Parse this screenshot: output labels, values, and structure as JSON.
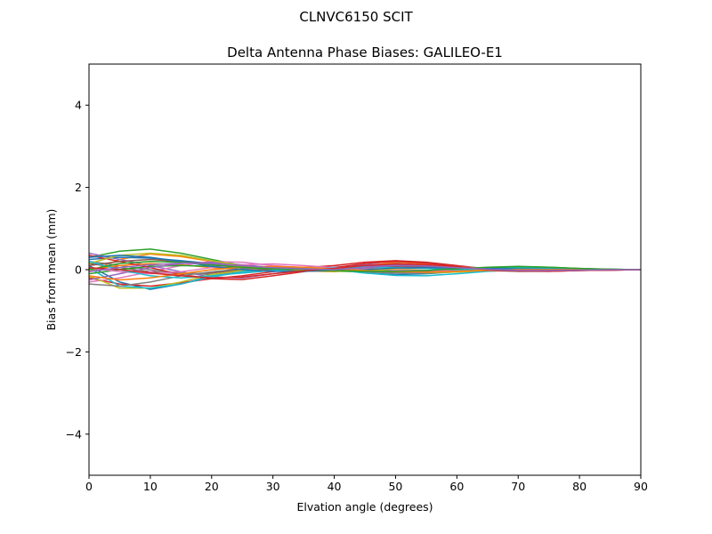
{
  "suptitle": "CLNVC6150        SCIT",
  "chart_data": {
    "type": "line",
    "title": "Delta Antenna Phase Biases: GALILEO-E1",
    "xlabel": "Elvation angle (degrees)",
    "ylabel": "Bias from mean (mm)",
    "xlim": [
      0,
      90
    ],
    "ylim": [
      -5,
      5
    ],
    "xticks": [
      "0",
      "10",
      "20",
      "30",
      "40",
      "50",
      "60",
      "70",
      "80",
      "90"
    ],
    "yticks": [
      "−4",
      "−2",
      "0",
      "2",
      "4"
    ],
    "x": [
      0,
      5,
      10,
      15,
      20,
      25,
      30,
      35,
      40,
      45,
      50,
      55,
      60,
      65,
      70,
      75,
      80,
      85,
      90
    ],
    "series": [
      {
        "color": "#1f77b4",
        "values": [
          0.1,
          -0.3,
          -0.48,
          -0.35,
          -0.15,
          -0.05,
          0.02,
          0.05,
          0.02,
          -0.08,
          -0.12,
          -0.1,
          -0.05,
          0.0,
          0.02,
          0.02,
          0.01,
          0.0,
          0.0
        ]
      },
      {
        "color": "#ff7f0e",
        "values": [
          -0.05,
          0.25,
          0.38,
          0.32,
          0.2,
          0.08,
          0.02,
          -0.03,
          -0.05,
          0.02,
          0.1,
          0.08,
          0.03,
          -0.02,
          -0.03,
          -0.02,
          -0.01,
          0.0,
          0.0
        ]
      },
      {
        "color": "#2ca02c",
        "values": [
          0.3,
          0.45,
          0.5,
          0.4,
          0.25,
          0.1,
          0.03,
          -0.02,
          -0.04,
          -0.05,
          -0.03,
          -0.02,
          0.0,
          0.05,
          0.06,
          0.05,
          0.02,
          0.01,
          0.0
        ]
      },
      {
        "color": "#d62728",
        "values": [
          -0.2,
          -0.35,
          -0.4,
          -0.32,
          -0.22,
          -0.15,
          -0.05,
          0.05,
          0.1,
          0.18,
          0.22,
          0.18,
          0.1,
          0.02,
          -0.03,
          -0.04,
          -0.02,
          -0.01,
          0.0
        ]
      },
      {
        "color": "#9467bd",
        "values": [
          0.4,
          0.25,
          0.1,
          -0.05,
          -0.18,
          -0.2,
          -0.1,
          0.0,
          0.06,
          0.12,
          0.15,
          0.12,
          0.08,
          0.03,
          -0.02,
          -0.03,
          -0.02,
          0.0,
          0.0
        ]
      },
      {
        "color": "#8c564b",
        "values": [
          0.15,
          0.05,
          -0.05,
          -0.1,
          -0.08,
          0.0,
          0.05,
          0.06,
          0.03,
          0.05,
          0.08,
          0.06,
          0.02,
          -0.02,
          -0.03,
          -0.02,
          -0.01,
          0.0,
          0.0
        ]
      },
      {
        "color": "#e377c2",
        "values": [
          -0.3,
          -0.2,
          -0.05,
          0.1,
          0.2,
          0.18,
          0.1,
          0.05,
          0.02,
          0.0,
          -0.02,
          -0.04,
          -0.05,
          -0.04,
          -0.02,
          -0.01,
          0.0,
          0.0,
          0.0
        ]
      },
      {
        "color": "#7f7f7f",
        "values": [
          0.2,
          0.1,
          0.0,
          -0.08,
          -0.12,
          -0.08,
          -0.02,
          0.02,
          0.04,
          0.02,
          -0.04,
          -0.06,
          -0.04,
          0.0,
          0.02,
          0.02,
          0.01,
          0.0,
          0.0
        ]
      },
      {
        "color": "#bcbd22",
        "values": [
          -0.15,
          -0.45,
          -0.45,
          -0.3,
          -0.12,
          -0.02,
          0.04,
          0.06,
          0.04,
          0.0,
          -0.05,
          -0.08,
          -0.06,
          -0.03,
          0.0,
          0.01,
          0.01,
          0.0,
          0.0
        ]
      },
      {
        "color": "#17becf",
        "values": [
          0.05,
          -0.4,
          -0.45,
          -0.35,
          -0.18,
          -0.05,
          0.03,
          0.05,
          0.0,
          -0.08,
          -0.14,
          -0.15,
          -0.1,
          -0.04,
          0.0,
          0.02,
          0.01,
          0.0,
          0.0
        ]
      },
      {
        "color": "#1f77b4",
        "values": [
          0.25,
          0.3,
          0.28,
          0.22,
          0.15,
          0.1,
          0.06,
          0.04,
          0.0,
          -0.04,
          -0.06,
          -0.05,
          -0.02,
          0.02,
          0.04,
          0.03,
          0.01,
          0.0,
          0.0
        ]
      },
      {
        "color": "#ff7f0e",
        "values": [
          0.0,
          0.1,
          0.15,
          0.12,
          0.05,
          0.0,
          -0.03,
          -0.04,
          -0.02,
          0.08,
          0.18,
          0.15,
          0.08,
          0.02,
          -0.02,
          -0.02,
          -0.01,
          0.0,
          0.0
        ]
      },
      {
        "color": "#2ca02c",
        "values": [
          -0.1,
          0.0,
          0.08,
          0.1,
          0.08,
          0.05,
          0.02,
          0.0,
          -0.02,
          -0.05,
          -0.08,
          -0.06,
          -0.02,
          0.04,
          0.07,
          0.06,
          0.03,
          0.01,
          0.0
        ]
      },
      {
        "color": "#d62728",
        "values": [
          0.35,
          0.2,
          0.05,
          -0.12,
          -0.22,
          -0.24,
          -0.15,
          -0.05,
          0.05,
          0.15,
          0.2,
          0.16,
          0.08,
          0.0,
          -0.04,
          -0.04,
          -0.02,
          -0.01,
          0.0
        ]
      },
      {
        "color": "#9467bd",
        "values": [
          -0.25,
          -0.1,
          0.05,
          0.15,
          0.18,
          0.12,
          0.05,
          0.0,
          0.02,
          0.08,
          0.12,
          0.1,
          0.05,
          0.0,
          -0.03,
          -0.03,
          -0.02,
          -0.01,
          0.0
        ]
      },
      {
        "color": "#8c564b",
        "values": [
          0.1,
          0.2,
          0.25,
          0.2,
          0.12,
          0.05,
          0.0,
          -0.02,
          -0.02,
          0.04,
          0.1,
          0.08,
          0.03,
          -0.02,
          -0.04,
          -0.03,
          -0.01,
          0.0,
          0.0
        ]
      },
      {
        "color": "#e377c2",
        "values": [
          0.05,
          -0.05,
          -0.1,
          -0.05,
          0.05,
          0.12,
          0.14,
          0.1,
          0.05,
          0.02,
          0.0,
          -0.02,
          -0.03,
          -0.02,
          -0.01,
          0.0,
          0.0,
          0.0,
          0.0
        ]
      },
      {
        "color": "#7f7f7f",
        "values": [
          -0.35,
          -0.4,
          -0.3,
          -0.15,
          -0.05,
          0.02,
          0.05,
          0.04,
          0.0,
          -0.05,
          -0.08,
          -0.07,
          -0.04,
          0.0,
          0.02,
          0.02,
          0.01,
          0.0,
          0.0
        ]
      },
      {
        "color": "#bcbd22",
        "values": [
          0.15,
          0.35,
          0.4,
          0.35,
          0.22,
          0.1,
          0.03,
          -0.02,
          -0.04,
          -0.02,
          0.02,
          0.03,
          0.02,
          0.0,
          -0.01,
          -0.01,
          0.0,
          0.0,
          0.0
        ]
      },
      {
        "color": "#17becf",
        "values": [
          0.2,
          0.0,
          -0.15,
          -0.2,
          -0.15,
          -0.08,
          -0.02,
          0.02,
          0.04,
          0.06,
          0.05,
          0.03,
          0.0,
          0.02,
          0.04,
          0.03,
          0.01,
          0.0,
          0.0
        ]
      },
      {
        "color": "#1f77b4",
        "values": [
          0.3,
          0.35,
          0.3,
          0.2,
          0.08,
          0.0,
          -0.04,
          -0.04,
          -0.02,
          0.0,
          0.04,
          0.05,
          0.04,
          0.03,
          0.02,
          0.01,
          0.0,
          0.0,
          0.0
        ]
      },
      {
        "color": "#ff7f0e",
        "values": [
          -0.15,
          -0.25,
          -0.2,
          -0.1,
          0.0,
          0.06,
          0.08,
          0.06,
          0.02,
          -0.02,
          -0.05,
          -0.06,
          -0.04,
          -0.02,
          0.0,
          0.0,
          0.0,
          0.0,
          0.0
        ]
      },
      {
        "color": "#2ca02c",
        "values": [
          0.0,
          0.15,
          0.2,
          0.18,
          0.12,
          0.06,
          0.02,
          0.0,
          -0.02,
          -0.04,
          -0.04,
          -0.02,
          0.02,
          0.06,
          0.08,
          0.06,
          0.03,
          0.01,
          0.0
        ]
      },
      {
        "color": "#d62728",
        "values": [
          0.05,
          0.0,
          -0.08,
          -0.15,
          -0.2,
          -0.18,
          -0.1,
          -0.03,
          0.03,
          0.1,
          0.14,
          0.12,
          0.06,
          0.0,
          -0.03,
          -0.03,
          -0.02,
          -0.01,
          0.0
        ]
      },
      {
        "color": "#9467bd",
        "values": [
          -0.05,
          0.05,
          0.12,
          0.16,
          0.15,
          0.1,
          0.05,
          0.02,
          0.0,
          0.05,
          0.1,
          0.09,
          0.05,
          0.01,
          -0.02,
          -0.02,
          -0.01,
          0.0,
          0.0
        ]
      }
    ]
  }
}
